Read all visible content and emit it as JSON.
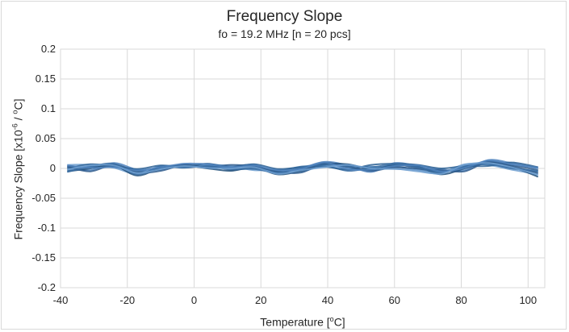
{
  "chart_data": {
    "type": "line",
    "title": "Frequency Slope",
    "subtitle": "fo = 19.2 MHz [n = 20 pcs]",
    "xlabel": {
      "pre": "Temperature [",
      "sup": "o",
      "post": "C]"
    },
    "ylabel": {
      "pre": "Frequency Slope [x10",
      "sup": "-6",
      "post": " / ",
      "sup2": "o",
      "post2": "C]"
    },
    "xlim": [
      -40,
      105
    ],
    "ylim": [
      -0.2,
      0.2
    ],
    "xticks": [
      -40,
      -20,
      0,
      20,
      40,
      60,
      80,
      100
    ],
    "yticks": [
      0.2,
      0.15,
      0.1,
      0.05,
      0,
      -0.05,
      -0.1,
      -0.15,
      -0.2
    ],
    "ytick_labels": [
      "0.2",
      "0.15",
      "0.1",
      "0.05",
      "0",
      "-0.05",
      "-0.1",
      "-0.15",
      "-0.2"
    ],
    "grid": true,
    "legend": "none",
    "colors": [
      "#2e5b8c",
      "#3a6ea5",
      "#4f83bd",
      "#6f9fd0",
      "#1f4e79",
      "#2c6094"
    ],
    "x": [
      -38,
      -31,
      -24,
      -17,
      -10,
      -3,
      4,
      11,
      18,
      25,
      32,
      39,
      46,
      53,
      60,
      67,
      74,
      81,
      88,
      95,
      103
    ],
    "series": [
      {
        "values": [
          0.004,
          0.002,
          0.007,
          -0.004,
          0.0,
          0.006,
          0.003,
          0.001,
          0.004,
          -0.006,
          -0.002,
          0.008,
          0.002,
          -0.003,
          0.006,
          0.001,
          -0.004,
          0.002,
          0.012,
          0.006,
          -0.003
        ]
      },
      {
        "values": [
          -0.003,
          0.004,
          0.003,
          -0.006,
          0.002,
          0.004,
          0.005,
          -0.002,
          0.0,
          -0.004,
          0.003,
          0.005,
          -0.004,
          0.001,
          0.003,
          -0.002,
          -0.006,
          0.005,
          0.008,
          0.001,
          -0.006
        ]
      },
      {
        "values": [
          0.002,
          -0.003,
          0.009,
          -0.002,
          -0.002,
          0.007,
          0.001,
          0.003,
          0.006,
          -0.008,
          0.0,
          0.011,
          0.005,
          -0.006,
          0.009,
          0.004,
          -0.002,
          -0.003,
          0.014,
          0.009,
          0.0
        ]
      },
      {
        "values": [
          0.006,
          0.006,
          0.001,
          -0.009,
          0.004,
          0.002,
          0.006,
          0.004,
          -0.003,
          -0.002,
          -0.005,
          0.004,
          0.0,
          0.003,
          0.0,
          -0.005,
          -0.008,
          0.007,
          0.006,
          -0.002,
          -0.01
        ]
      },
      {
        "values": [
          -0.005,
          0.0,
          0.005,
          -0.012,
          0.001,
          0.005,
          0.0,
          -0.004,
          0.002,
          -0.01,
          -0.004,
          0.007,
          0.007,
          -0.001,
          0.005,
          0.003,
          -0.01,
          0.0,
          0.01,
          0.003,
          -0.014
        ]
      },
      {
        "values": [
          0.0,
          0.007,
          0.004,
          -0.001,
          0.005,
          0.003,
          0.008,
          0.002,
          0.007,
          -0.001,
          0.002,
          0.003,
          -0.002,
          0.006,
          0.008,
          0.006,
          0.0,
          0.004,
          0.004,
          0.01,
          0.002
        ]
      },
      {
        "values": [
          0.003,
          -0.005,
          0.006,
          -0.007,
          -0.004,
          0.006,
          0.002,
          0.006,
          0.003,
          -0.005,
          -0.007,
          0.009,
          0.003,
          -0.004,
          0.002,
          -0.001,
          -0.003,
          -0.005,
          0.011,
          0.004,
          -0.008
        ]
      },
      {
        "values": [
          -0.006,
          0.003,
          0.008,
          -0.01,
          0.003,
          0.001,
          0.004,
          -0.001,
          -0.001,
          -0.007,
          0.001,
          0.006,
          0.004,
          0.002,
          0.007,
          0.002,
          -0.007,
          0.003,
          0.007,
          0.0,
          -0.004
        ]
      },
      {
        "values": [
          0.005,
          0.001,
          0.002,
          -0.003,
          0.002,
          0.008,
          0.007,
          0.002,
          0.005,
          -0.003,
          -0.001,
          0.01,
          -0.001,
          -0.002,
          0.004,
          0.005,
          -0.005,
          0.001,
          0.013,
          0.007,
          0.001
        ]
      },
      {
        "values": [
          -0.002,
          0.005,
          0.005,
          -0.008,
          -0.001,
          0.004,
          0.001,
          0.0,
          0.002,
          -0.009,
          -0.003,
          0.002,
          0.006,
          0.0,
          -0.001,
          -0.003,
          -0.009,
          0.006,
          0.009,
          0.002,
          -0.011
        ]
      }
    ]
  }
}
